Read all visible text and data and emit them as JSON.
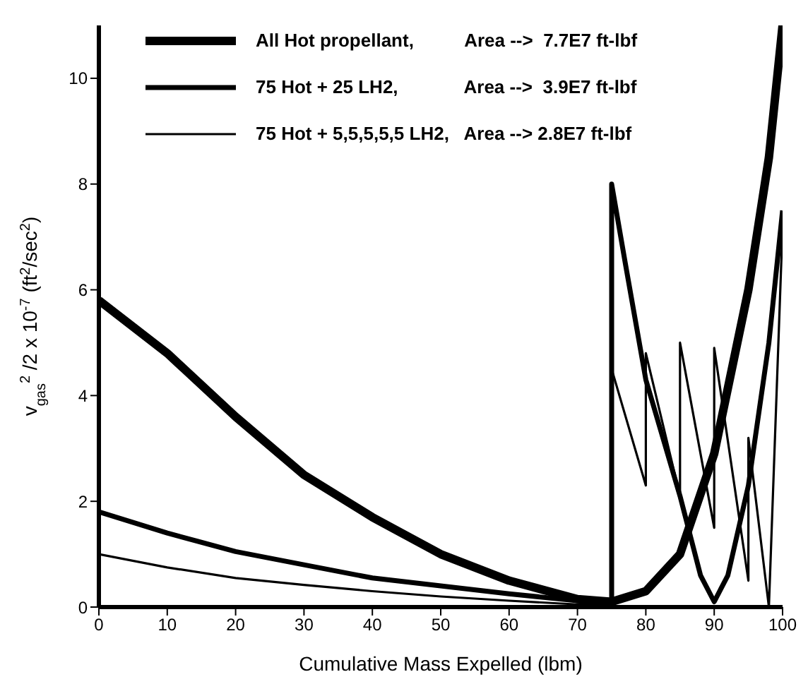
{
  "chart_data": {
    "type": "line",
    "xlabel": "Cumulative Mass Expelled (lbm)",
    "ylabel": "v$_{gas}$$^{2}$ /2 x 10$^{-7}$ (ft$^{2}$/sec$^{2}$)",
    "xlim": [
      0,
      100
    ],
    "xticks": [
      0,
      10,
      20,
      30,
      40,
      50,
      60,
      70,
      80,
      90,
      100
    ],
    "ylim": [
      0,
      11
    ],
    "yticks": [
      0,
      2,
      4,
      6,
      8,
      10
    ],
    "legend": "top",
    "marker": "none",
    "line_style": "solid",
    "series": [
      {
        "name": "All Hot propellant,          Area -->  7.7E7 ft-lbf",
        "color": "#000000",
        "x": [
          0,
          10,
          20,
          30,
          40,
          50,
          60,
          70,
          75,
          80,
          85,
          90,
          95,
          98,
          100
        ],
        "values": [
          5.8,
          4.8,
          3.6,
          2.5,
          1.7,
          1.0,
          0.5,
          0.15,
          0.1,
          0.3,
          1.0,
          2.9,
          6.0,
          8.5,
          11
        ]
      },
      {
        "name": "75 Hot + 25 LH2,             Area -->  3.9E7 ft-lbf",
        "color": "#000000",
        "x": [
          0,
          10,
          20,
          30,
          40,
          50,
          60,
          70,
          75,
          75,
          77,
          80,
          85,
          88,
          90,
          92,
          95,
          98,
          100
        ],
        "values": [
          1.8,
          1.4,
          1.05,
          0.8,
          0.55,
          0.4,
          0.25,
          0.12,
          0.1,
          8.0,
          6.5,
          4.3,
          2.1,
          0.6,
          0.1,
          0.6,
          2.3,
          5.0,
          7.5
        ]
      },
      {
        "name": "75 Hot + 5,5,5,5,5 LH2,   Area --> 2.8E7 ft-lbf",
        "color": "#000000",
        "x": [
          0,
          10,
          20,
          30,
          40,
          50,
          60,
          70,
          75,
          75,
          80,
          80,
          85,
          85,
          90,
          90,
          95,
          95,
          98,
          100
        ],
        "values": [
          1.0,
          0.75,
          0.55,
          0.42,
          0.3,
          0.2,
          0.12,
          0.05,
          0.05,
          4.5,
          2.3,
          4.8,
          2.1,
          5.0,
          1.5,
          4.9,
          0.5,
          3.2,
          0,
          7.2
        ]
      }
    ]
  }
}
